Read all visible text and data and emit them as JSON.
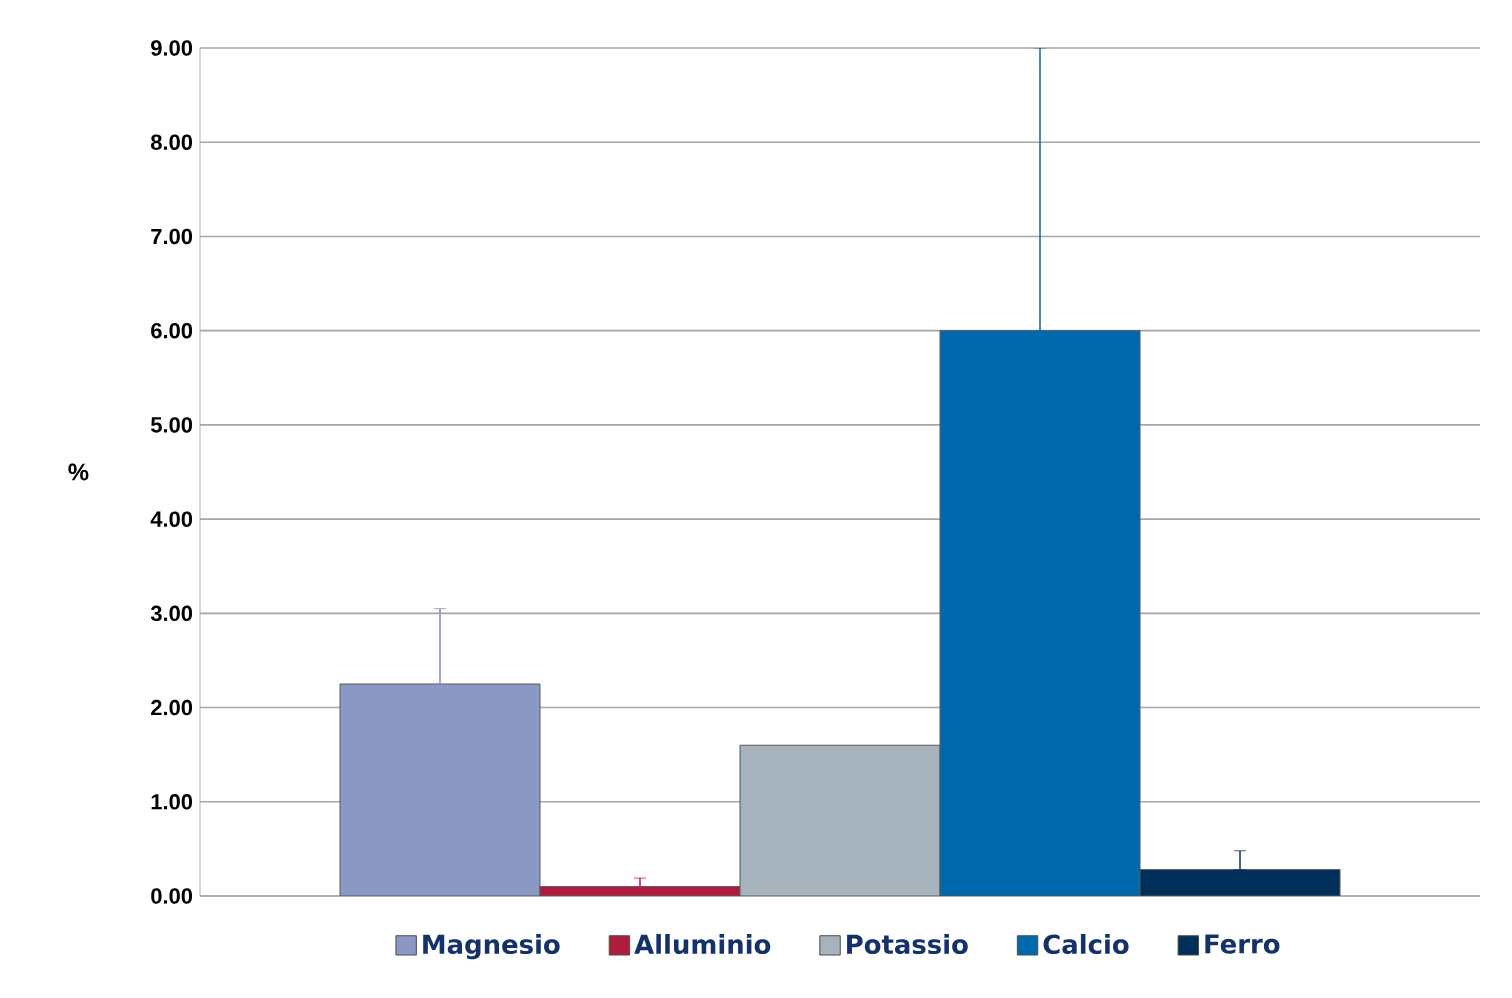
{
  "chart_data": {
    "type": "bar",
    "ylabel": "%",
    "categories": [
      null
    ],
    "series": [
      {
        "name": "Magnesio",
        "color": "#8c98c4",
        "values": [
          2.25
        ],
        "errors": [
          [
            2.25,
            3.05
          ]
        ]
      },
      {
        "name": "Alluminio",
        "color": "#b01c3c",
        "values": [
          0.1
        ],
        "errors": [
          [
            0.1,
            0.19
          ]
        ]
      },
      {
        "name": "Potassio",
        "color": "#a6b3bd",
        "values": [
          1.6
        ],
        "errors": [
          null
        ]
      },
      {
        "name": "Calcio",
        "color": "#0069ab",
        "values": [
          6.0
        ],
        "errors": [
          [
            6.0,
            9.0
          ]
        ]
      },
      {
        "name": "Ferro",
        "color": "#002f5a",
        "values": [
          0.28
        ],
        "errors": [
          [
            0.28,
            0.48
          ]
        ]
      }
    ],
    "ylim": [
      0,
      9
    ],
    "yticks": [
      {
        "value": 0,
        "label": "0.00"
      },
      {
        "value": 1,
        "label": "1.00"
      },
      {
        "value": 2,
        "label": "2.00"
      },
      {
        "value": 3,
        "label": "3.00"
      },
      {
        "value": 4,
        "label": "4.00"
      },
      {
        "value": 5,
        "label": "5.00"
      },
      {
        "value": 6,
        "label": "6.00"
      },
      {
        "value": 7,
        "label": "7.00"
      },
      {
        "value": 8,
        "label": "8.00"
      },
      {
        "value": 9,
        "label": "9.00"
      }
    ],
    "tick_labels": "y",
    "grid": "y",
    "legend": "bottom"
  }
}
